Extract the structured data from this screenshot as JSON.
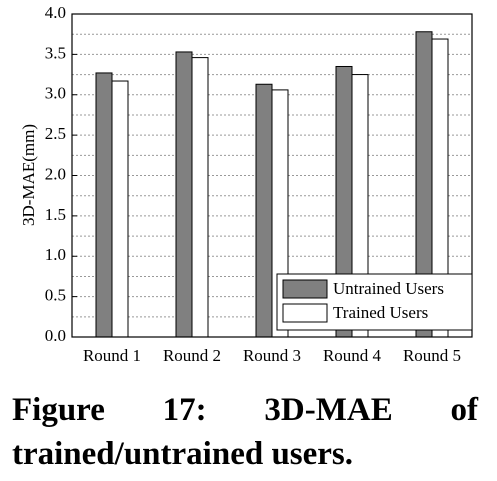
{
  "chart_data": {
    "type": "bar",
    "ylabel": "3D-MAE(mm)",
    "categories": [
      "Round 1",
      "Round 2",
      "Round 3",
      "Round 4",
      "Round 5"
    ],
    "series": [
      {
        "name": "Untrained Users",
        "color": "#808080",
        "values": [
          3.27,
          3.53,
          3.13,
          3.35,
          3.78
        ]
      },
      {
        "name": "Trained Users",
        "color": "#ffffff",
        "values": [
          3.17,
          3.46,
          3.06,
          3.25,
          3.69
        ]
      }
    ],
    "ylim": [
      0,
      4
    ],
    "yticks": [
      {
        "value": 0,
        "label": "0.0"
      },
      {
        "value": 0.5,
        "label": "0.5"
      },
      {
        "value": 1,
        "label": "1.0"
      },
      {
        "value": 1.5,
        "label": "1.5"
      },
      {
        "value": 2,
        "label": "2.0"
      },
      {
        "value": 2.5,
        "label": "2.5"
      },
      {
        "value": 3,
        "label": "3.0"
      },
      {
        "value": 3.5,
        "label": "3.5"
      },
      {
        "value": 4,
        "label": "4.0"
      }
    ],
    "minor_yticks": [
      0.25,
      0.75,
      1.25,
      1.75,
      2.25,
      2.75,
      3.25,
      3.75
    ],
    "grid": true,
    "legend": "lower right"
  },
  "caption": "Figure 17: 3D-MAE of trained/untrained users."
}
